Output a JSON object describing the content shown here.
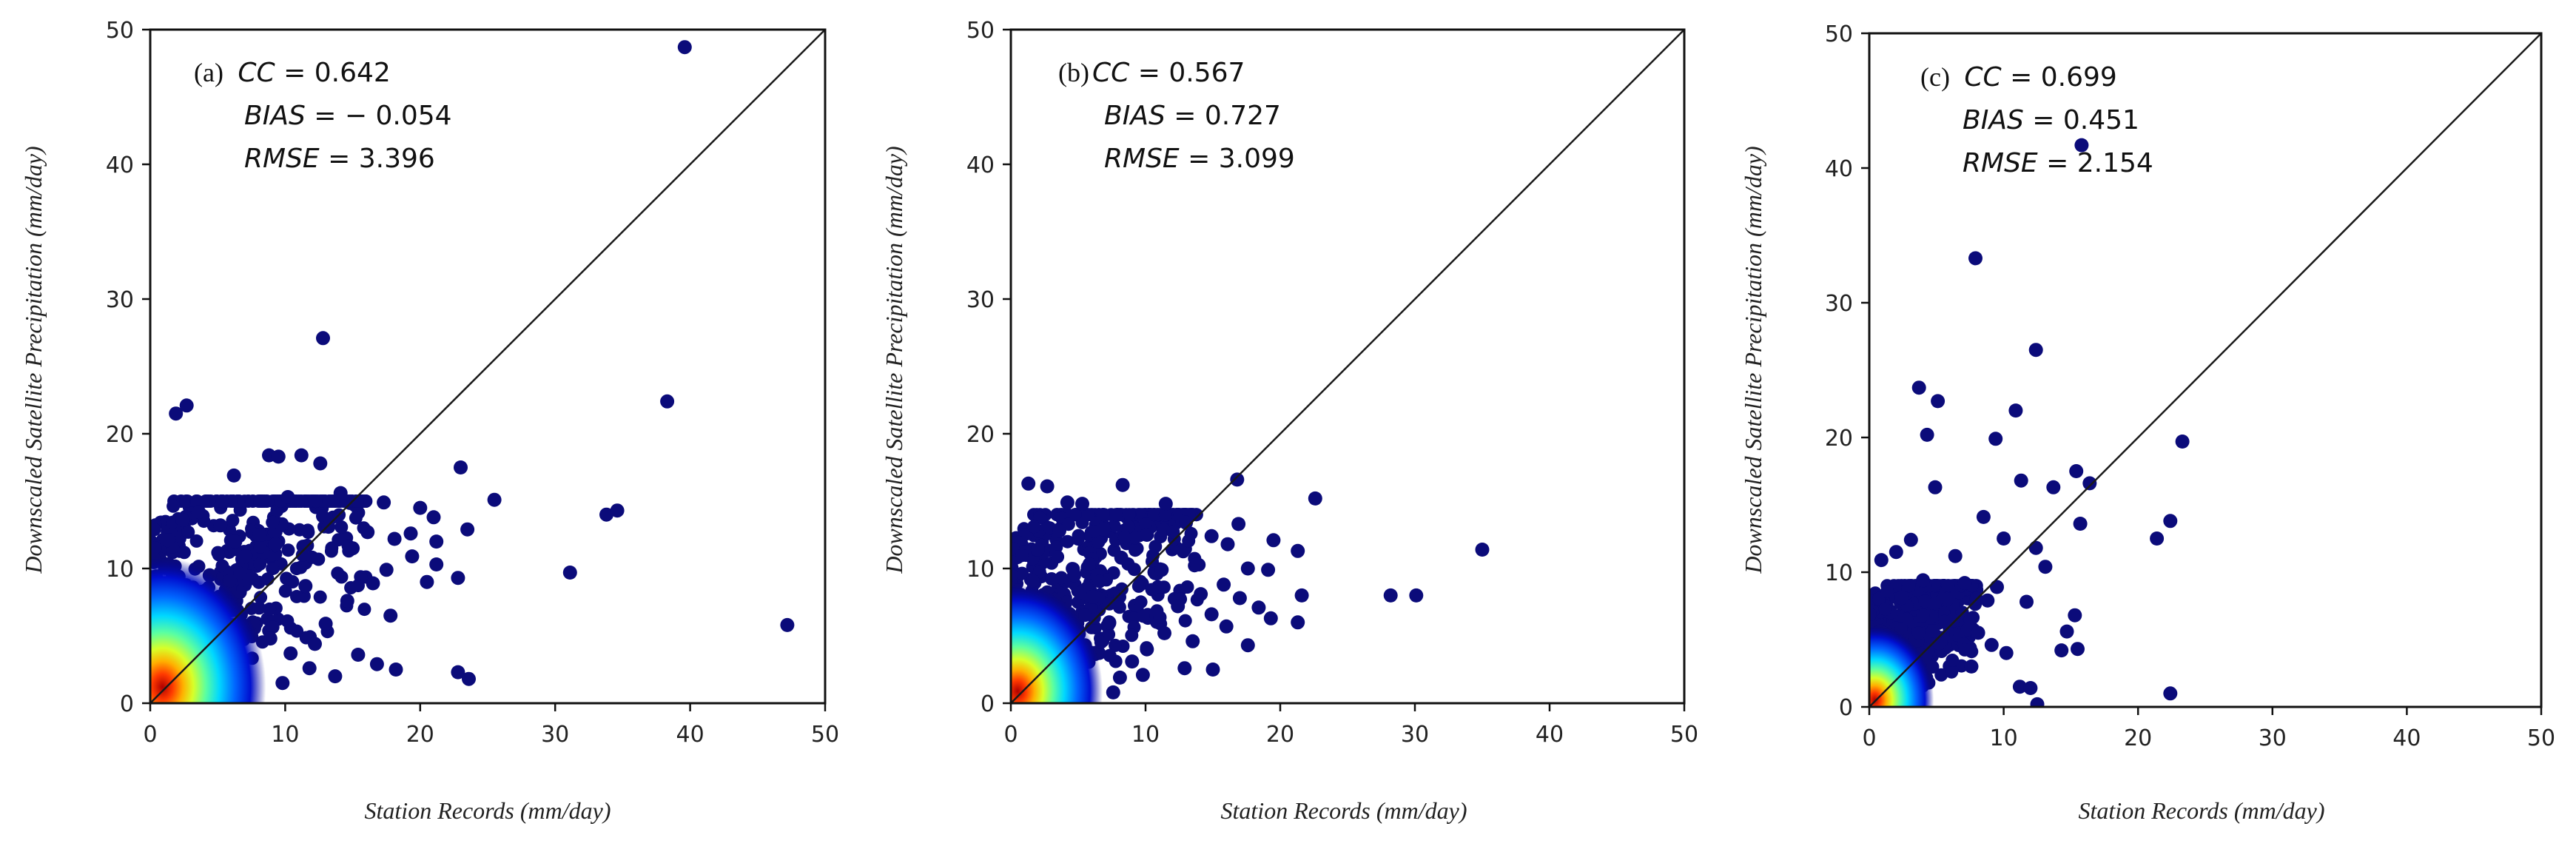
{
  "chart_data": [
    {
      "type": "scatter",
      "panel_label": "(a)",
      "xlabel": "Station Records (mm/day)",
      "ylabel": "Downscaled Satellite Precipitation (mm/day)",
      "xlim": [
        0,
        50
      ],
      "ylim": [
        0,
        50
      ],
      "xticks": [
        "0",
        "10",
        "20",
        "30",
        "40",
        "50"
      ],
      "yticks": [
        "0",
        "10",
        "20",
        "30",
        "40",
        "50"
      ],
      "reference_line": "1:1",
      "stats": [
        {
          "name": "CC",
          "value": "0.642"
        },
        {
          "name": "BIAS",
          "value": "− 0.054"
        },
        {
          "name": "RMSE",
          "value": "3.396"
        }
      ],
      "density_colormap": [
        "#00007f",
        "#0055ff",
        "#00e5ff",
        "#7dff7a",
        "#ffe600",
        "#ff4400",
        "#b00000"
      ],
      "point_color": "#0b0b7a",
      "dense_region": {
        "x_max": 16,
        "y_max": 15
      },
      "points": [
        [
          39.6,
          48.7
        ],
        [
          12.8,
          27.1
        ],
        [
          2.7,
          22.1
        ],
        [
          1.9,
          21.5
        ],
        [
          38.3,
          22.4
        ],
        [
          8.8,
          18.4
        ],
        [
          9.5,
          18.3
        ],
        [
          11.2,
          18.4
        ],
        [
          12.6,
          17.8
        ],
        [
          23.0,
          17.5
        ],
        [
          6.2,
          16.9
        ],
        [
          10.2,
          15.3
        ],
        [
          14.1,
          15.6
        ],
        [
          25.5,
          15.1
        ],
        [
          33.8,
          14.0
        ],
        [
          34.6,
          14.3
        ],
        [
          20.0,
          14.5
        ],
        [
          21.0,
          13.8
        ],
        [
          17.3,
          14.9
        ],
        [
          19.3,
          12.6
        ],
        [
          18.1,
          12.2
        ],
        [
          21.2,
          12.0
        ],
        [
          22.8,
          9.3
        ],
        [
          23.5,
          12.9
        ],
        [
          17.5,
          9.9
        ],
        [
          19.4,
          10.9
        ],
        [
          20.5,
          9.0
        ],
        [
          21.2,
          10.3
        ],
        [
          16.5,
          8.9
        ],
        [
          31.1,
          9.7
        ],
        [
          47.2,
          5.8
        ],
        [
          15.0,
          11.5
        ],
        [
          16.1,
          12.7
        ],
        [
          14.6,
          7.6
        ],
        [
          13.2,
          13.1
        ],
        [
          17.8,
          6.5
        ],
        [
          16.8,
          2.9
        ],
        [
          18.2,
          2.5
        ],
        [
          22.8,
          2.3
        ],
        [
          23.6,
          1.8
        ],
        [
          15.4,
          3.6
        ],
        [
          13.7,
          2.0
        ],
        [
          12.2,
          4.4
        ],
        [
          11.5,
          8.7
        ],
        [
          9.3,
          11.8
        ],
        [
          8.1,
          12.5
        ],
        [
          7.0,
          10.9
        ],
        [
          6.3,
          12.0
        ],
        [
          5.2,
          13.2
        ],
        [
          3.6,
          14.2
        ],
        [
          2.4,
          13.6
        ],
        [
          1.3,
          12.1
        ],
        [
          4.4,
          9.5
        ],
        [
          5.8,
          7.3
        ],
        [
          7.6,
          6.0
        ],
        [
          8.9,
          4.8
        ],
        [
          10.4,
          3.7
        ],
        [
          9.8,
          1.5
        ],
        [
          11.8,
          2.6
        ],
        [
          13.0,
          5.9
        ]
      ]
    },
    {
      "type": "scatter",
      "panel_label": "(b)",
      "xlabel": "Station Records (mm/day)",
      "ylabel": "Downscaled Satellite Precipitation (mm/day)",
      "xlim": [
        0,
        50
      ],
      "ylim": [
        0,
        50
      ],
      "xticks": [
        "0",
        "10",
        "20",
        "30",
        "40",
        "50"
      ],
      "yticks": [
        "0",
        "10",
        "20",
        "30",
        "40",
        "50"
      ],
      "reference_line": "1:1",
      "stats": [
        {
          "name": "CC",
          "value": "0.567"
        },
        {
          "name": "BIAS",
          "value": "0.727"
        },
        {
          "name": "RMSE",
          "value": "3.099"
        }
      ],
      "density_colormap": [
        "#00007f",
        "#0055ff",
        "#00e5ff",
        "#7dff7a",
        "#ffe600",
        "#ff4400",
        "#b00000"
      ],
      "point_color": "#0b0b7a",
      "dense_region": {
        "x_max": 14,
        "y_max": 14
      },
      "points": [
        [
          1.3,
          16.3
        ],
        [
          2.7,
          16.1
        ],
        [
          8.3,
          16.2
        ],
        [
          16.8,
          16.6
        ],
        [
          4.2,
          14.9
        ],
        [
          5.3,
          14.8
        ],
        [
          11.5,
          14.8
        ],
        [
          22.6,
          15.2
        ],
        [
          13.0,
          13.4
        ],
        [
          14.9,
          12.4
        ],
        [
          16.1,
          11.8
        ],
        [
          16.9,
          13.3
        ],
        [
          19.5,
          12.1
        ],
        [
          21.3,
          11.3
        ],
        [
          35.0,
          11.4
        ],
        [
          17.6,
          10.0
        ],
        [
          19.1,
          9.9
        ],
        [
          21.6,
          8.0
        ],
        [
          28.2,
          8.0
        ],
        [
          30.1,
          8.0
        ],
        [
          17.0,
          7.8
        ],
        [
          18.4,
          7.1
        ],
        [
          19.3,
          6.3
        ],
        [
          21.3,
          6.0
        ],
        [
          15.8,
          8.8
        ],
        [
          14.1,
          8.1
        ],
        [
          14.9,
          6.6
        ],
        [
          16.0,
          5.7
        ],
        [
          17.6,
          4.3
        ],
        [
          13.5,
          4.6
        ],
        [
          12.4,
          7.2
        ],
        [
          11.4,
          5.2
        ],
        [
          10.1,
          4.0
        ],
        [
          9.0,
          3.1
        ],
        [
          9.8,
          2.1
        ],
        [
          8.1,
          1.9
        ],
        [
          7.6,
          0.8
        ],
        [
          11.2,
          9.9
        ],
        [
          10.1,
          12.5
        ],
        [
          8.2,
          10.8
        ],
        [
          6.9,
          12.9
        ],
        [
          3.6,
          12.8
        ],
        [
          2.0,
          11.4
        ],
        [
          4.7,
          9.5
        ],
        [
          6.1,
          7.9
        ],
        [
          7.3,
          6.0
        ],
        [
          5.5,
          4.3
        ],
        [
          12.9,
          2.6
        ],
        [
          15.0,
          2.5
        ],
        [
          13.8,
          10.3
        ]
      ]
    },
    {
      "type": "scatter",
      "panel_label": "(c)",
      "xlabel": "Station Records (mm/day)",
      "ylabel": "Downscaled Satellite Precipitation (mm/day)",
      "xlim": [
        0,
        50
      ],
      "ylim": [
        0,
        50
      ],
      "xticks": [
        "0",
        "10",
        "20",
        "30",
        "40",
        "50"
      ],
      "yticks": [
        "0",
        "10",
        "20",
        "30",
        "40",
        "50"
      ],
      "reference_line": "1:1",
      "stats": [
        {
          "name": "CC",
          "value": "0.699"
        },
        {
          "name": "BIAS",
          "value": "0.451"
        },
        {
          "name": "RMSE",
          "value": "2.154"
        }
      ],
      "density_colormap": [
        "#00007f",
        "#0055ff",
        "#00e5ff",
        "#7dff7a",
        "#ffe600",
        "#ff4400",
        "#b00000"
      ],
      "point_color": "#0b0b7a",
      "dense_region": {
        "x_max": 8,
        "y_max": 9
      },
      "points": [
        [
          15.8,
          41.7
        ],
        [
          7.9,
          33.3
        ],
        [
          12.4,
          26.5
        ],
        [
          3.7,
          23.7
        ],
        [
          5.1,
          22.7
        ],
        [
          10.9,
          22.0
        ],
        [
          9.4,
          19.9
        ],
        [
          15.4,
          17.5
        ],
        [
          4.3,
          20.2
        ],
        [
          23.3,
          19.7
        ],
        [
          16.4,
          16.6
        ],
        [
          4.9,
          16.3
        ],
        [
          11.3,
          16.8
        ],
        [
          8.5,
          14.1
        ],
        [
          13.7,
          16.3
        ],
        [
          15.7,
          13.6
        ],
        [
          21.4,
          12.5
        ],
        [
          22.4,
          13.8
        ],
        [
          10.0,
          12.5
        ],
        [
          12.4,
          11.8
        ],
        [
          13.1,
          10.4
        ],
        [
          11.7,
          7.8
        ],
        [
          15.3,
          6.8
        ],
        [
          14.7,
          5.6
        ],
        [
          15.5,
          4.3
        ],
        [
          14.3,
          4.2
        ],
        [
          10.2,
          4.0
        ],
        [
          9.1,
          4.6
        ],
        [
          11.2,
          1.5
        ],
        [
          12.0,
          1.4
        ],
        [
          12.5,
          0.2
        ],
        [
          22.4,
          1.0
        ],
        [
          2.0,
          11.5
        ],
        [
          0.9,
          10.9
        ],
        [
          3.1,
          12.4
        ],
        [
          6.4,
          11.2
        ],
        [
          7.1,
          9.2
        ],
        [
          5.8,
          8.0
        ],
        [
          8.8,
          7.9
        ],
        [
          6.2,
          6.4
        ],
        [
          8.1,
          5.5
        ],
        [
          9.5,
          8.9
        ],
        [
          4.0,
          9.4
        ],
        [
          2.4,
          8.1
        ],
        [
          7.6,
          3.0
        ]
      ]
    }
  ]
}
